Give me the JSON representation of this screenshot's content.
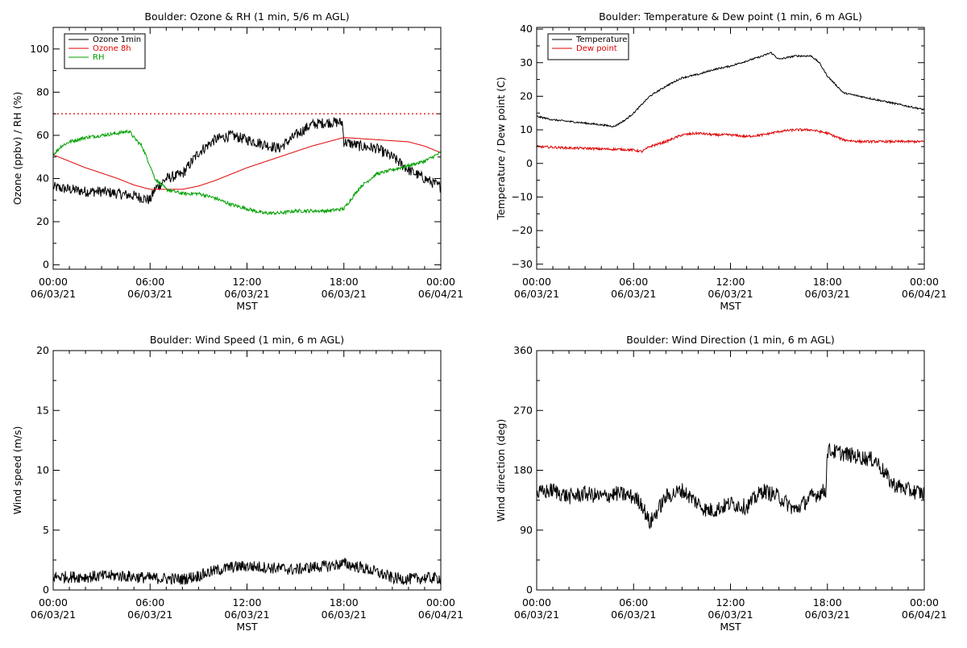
{
  "chart_data": [
    {
      "type": "line",
      "title": "Boulder: Ozone & RH (1 min, 5/6 m AGL)",
      "xlabel": "MST",
      "ylabel": "Ozone (ppbv) / RH (%)",
      "xlim": [
        0,
        24
      ],
      "ylim": [
        -2,
        110
      ],
      "x_ticks": [
        0,
        6,
        12,
        18,
        24
      ],
      "x_tick_labels": [
        {
          "time": "00:00",
          "date": "06/03/21"
        },
        {
          "time": "06:00",
          "date": "06/03/21"
        },
        {
          "time": "12:00",
          "date": "06/03/21"
        },
        {
          "time": "18:00",
          "date": "06/03/21"
        },
        {
          "time": "00:00",
          "date": "06/04/21"
        }
      ],
      "y_ticks": [
        0,
        20,
        40,
        60,
        80,
        100
      ],
      "y_tick_labels": [
        "0",
        "20",
        "40",
        "60",
        "80",
        "100"
      ],
      "legend_position": "top-left",
      "reference_lines": [
        {
          "value": 70,
          "color": "#e00000",
          "style": "dotted"
        }
      ],
      "series": [
        {
          "name": "Ozone 1min",
          "color": "#000000",
          "noise": 2.5,
          "x": [
            0,
            1,
            2,
            3,
            4,
            5,
            5.5,
            6,
            6.3,
            7,
            8,
            9,
            10,
            11,
            12,
            13,
            14,
            15,
            16,
            17,
            17.9,
            18,
            19,
            20,
            21,
            22,
            23,
            24
          ],
          "y": [
            36,
            35,
            34,
            34,
            33,
            32,
            31,
            30,
            35,
            40,
            42,
            52,
            58,
            60,
            58,
            56,
            54,
            60,
            65,
            66,
            66,
            57,
            55,
            54,
            50,
            44,
            40,
            36
          ]
        },
        {
          "name": "Ozone 8h",
          "color": "#e00000",
          "noise": 0,
          "x": [
            0,
            2,
            4,
            5,
            6,
            7,
            8,
            9,
            10,
            12,
            14,
            16,
            18,
            20,
            22,
            23,
            24
          ],
          "y": [
            51,
            45,
            40,
            37,
            35,
            35,
            35,
            36.5,
            39,
            45,
            50,
            55,
            59,
            58,
            57,
            55,
            52
          ]
        },
        {
          "name": "RH",
          "color": "#00a000",
          "noise": 0.8,
          "x": [
            0,
            0.5,
            1,
            2,
            3,
            4,
            4.7,
            5,
            5.5,
            6,
            6.3,
            7,
            8,
            9,
            10,
            11,
            12,
            13,
            14,
            15,
            16,
            17,
            18,
            19,
            20,
            21,
            22,
            23,
            24
          ],
          "y": [
            51,
            55,
            57,
            59,
            60,
            61,
            62,
            59,
            55,
            46,
            40,
            35,
            33,
            33,
            31,
            28,
            26,
            24,
            24,
            25,
            25,
            25,
            26,
            36,
            42,
            44,
            46,
            48,
            52
          ]
        }
      ]
    },
    {
      "type": "line",
      "title": "Boulder: Temperature & Dew point (1 min, 6 m AGL)",
      "xlabel": "MST",
      "ylabel": "Temperature / Dew point (C)",
      "xlim": [
        0,
        24
      ],
      "ylim": [
        -31.5,
        40.5
      ],
      "x_ticks": [
        0,
        6,
        12,
        18,
        24
      ],
      "x_tick_labels": [
        {
          "time": "00:00",
          "date": "06/03/21"
        },
        {
          "time": "06:00",
          "date": "06/03/21"
        },
        {
          "time": "12:00",
          "date": "06/03/21"
        },
        {
          "time": "18:00",
          "date": "06/03/21"
        },
        {
          "time": "00:00",
          "date": "06/04/21"
        }
      ],
      "y_ticks": [
        -30,
        -20,
        -10,
        0,
        10,
        20,
        30,
        40
      ],
      "y_tick_labels": [
        "−30",
        "−20",
        "−10",
        "0",
        "10",
        "20",
        "30",
        "40"
      ],
      "legend_position": "top-left",
      "series": [
        {
          "name": "Temperature",
          "color": "#000000",
          "noise": 0.25,
          "x": [
            0,
            1,
            2,
            3,
            4,
            4.8,
            5.5,
            6,
            7,
            8,
            9,
            10,
            11,
            12,
            13,
            14,
            14.5,
            15,
            15.5,
            16,
            17,
            17.5,
            18,
            19,
            20,
            21,
            22,
            23,
            24
          ],
          "y": [
            14,
            13,
            12.5,
            12,
            11.5,
            11,
            13,
            15,
            20,
            23,
            25.5,
            26.5,
            28,
            29,
            30.5,
            32,
            33,
            31,
            31.5,
            32,
            32,
            30,
            26,
            21,
            20,
            19,
            18,
            17,
            16
          ]
        },
        {
          "name": "Dew point",
          "color": "#e00000",
          "noise": 0.35,
          "x": [
            0,
            1,
            2,
            3,
            4,
            5,
            6,
            6.5,
            7,
            8,
            9,
            10,
            11,
            12,
            13,
            14,
            15,
            16,
            17,
            18,
            19,
            20,
            21,
            22,
            23,
            24
          ],
          "y": [
            5,
            4.8,
            4.6,
            4.5,
            4.3,
            4.2,
            4,
            3.5,
            5,
            6.5,
            8.5,
            9,
            8.5,
            8.5,
            8,
            8.5,
            9.5,
            10,
            10,
            9,
            7,
            6.5,
            6.5,
            6.5,
            6.5,
            6.5
          ]
        }
      ]
    },
    {
      "type": "line",
      "title": "Boulder: Wind Speed (1 min, 6 m AGL)",
      "xlabel": "MST",
      "ylabel": "Wind speed (m/s)",
      "xlim": [
        0,
        24
      ],
      "ylim": [
        0,
        20
      ],
      "x_ticks": [
        0,
        6,
        12,
        18,
        24
      ],
      "x_tick_labels": [
        {
          "time": "00:00",
          "date": "06/03/21"
        },
        {
          "time": "06:00",
          "date": "06/03/21"
        },
        {
          "time": "12:00",
          "date": "06/03/21"
        },
        {
          "time": "18:00",
          "date": "06/03/21"
        },
        {
          "time": "00:00",
          "date": "06/04/21"
        }
      ],
      "y_ticks": [
        0,
        5,
        10,
        15,
        20
      ],
      "y_tick_labels": [
        "0",
        "5",
        "10",
        "15",
        "20"
      ],
      "series": [
        {
          "color": "#000000",
          "noise": 0.5,
          "x": [
            0,
            2,
            4,
            6,
            8,
            9,
            10,
            11,
            12,
            13,
            14,
            15,
            16,
            17,
            18,
            19,
            20,
            21,
            22,
            23,
            24
          ],
          "y": [
            1.1,
            1.1,
            1.2,
            1.0,
            0.9,
            1.2,
            1.6,
            1.9,
            2.0,
            1.9,
            1.8,
            1.7,
            1.9,
            2.0,
            2.2,
            1.9,
            1.5,
            1.0,
            0.9,
            1.0,
            1.0
          ]
        }
      ]
    },
    {
      "type": "line",
      "title": "Boulder: Wind Direction (1 min, 6 m AGL)",
      "xlabel": "MST",
      "ylabel": "Wind direction (deg)",
      "xlim": [
        0,
        24
      ],
      "ylim": [
        0,
        360
      ],
      "x_ticks": [
        0,
        6,
        12,
        18,
        24
      ],
      "x_tick_labels": [
        {
          "time": "00:00",
          "date": "06/03/21"
        },
        {
          "time": "06:00",
          "date": "06/03/21"
        },
        {
          "time": "12:00",
          "date": "06/03/21"
        },
        {
          "time": "18:00",
          "date": "06/03/21"
        },
        {
          "time": "00:00",
          "date": "06/04/21"
        }
      ],
      "y_ticks": [
        0,
        90,
        180,
        270,
        360
      ],
      "y_tick_labels": [
        "0",
        "90",
        "180",
        "270",
        "360"
      ],
      "series": [
        {
          "color": "#000000",
          "noise": 12,
          "x": [
            0,
            1,
            2,
            3,
            4,
            5,
            6,
            6.5,
            7,
            8,
            9,
            10,
            10.5,
            11,
            12,
            13,
            14,
            15,
            16,
            17,
            17.9,
            18,
            19,
            20,
            21,
            22,
            23,
            24
          ],
          "y": [
            145,
            150,
            140,
            145,
            140,
            145,
            140,
            130,
            100,
            140,
            150,
            130,
            120,
            120,
            130,
            125,
            150,
            140,
            120,
            140,
            150,
            210,
            205,
            200,
            195,
            160,
            150,
            145
          ]
        }
      ]
    }
  ]
}
